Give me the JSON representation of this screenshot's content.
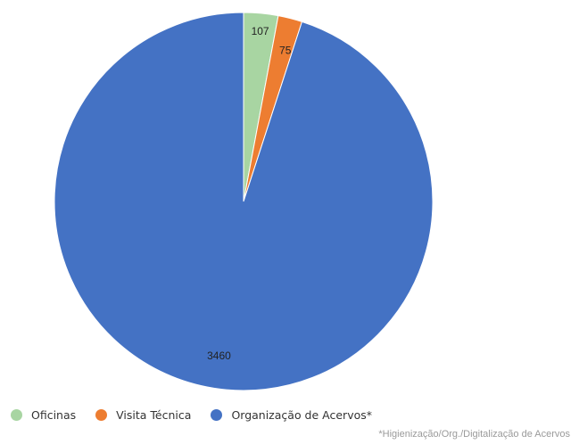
{
  "chart_data": {
    "type": "pie",
    "categories": [
      "Oficinas",
      "Visita Técnica",
      "Organização de Acervos*"
    ],
    "values": [
      107,
      75,
      3460
    ],
    "data_labels": [
      "107",
      "75",
      "3460"
    ],
    "colors": [
      "#a8d5a2",
      "#ed7d31",
      "#4472c4"
    ],
    "start_angle": "12 o'clock",
    "direction": "clockwise",
    "legend": {
      "position": "bottom-left",
      "items": [
        "Oficinas",
        "Visita Técnica",
        "Organização de Acervos*"
      ]
    },
    "footnote": "*Higienização/Org./Digitalização de Acervos"
  }
}
